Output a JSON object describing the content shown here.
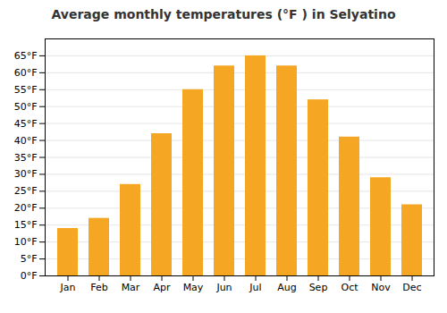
{
  "chart_data": {
    "type": "bar",
    "title": "Average monthly temperatures (°F ) in Selyatino",
    "categories": [
      "Jan",
      "Feb",
      "Mar",
      "Apr",
      "May",
      "Jun",
      "Jul",
      "Aug",
      "Sep",
      "Oct",
      "Nov",
      "Dec"
    ],
    "values": [
      14,
      17,
      27,
      42,
      55,
      62,
      65,
      62,
      52,
      41,
      29,
      21
    ],
    "color": "#F5A623",
    "ylim": [
      0,
      70
    ],
    "yticks": [
      {
        "value": 0,
        "label": "0°F"
      },
      {
        "value": 5,
        "label": "5°F"
      },
      {
        "value": 10,
        "label": "10°F"
      },
      {
        "value": 15,
        "label": "15°F"
      },
      {
        "value": 20,
        "label": "20°F"
      },
      {
        "value": 25,
        "label": "25°F"
      },
      {
        "value": 30,
        "label": "30°F"
      },
      {
        "value": 35,
        "label": "35°F"
      },
      {
        "value": 40,
        "label": "40°F"
      },
      {
        "value": 45,
        "label": "45°F"
      },
      {
        "value": 50,
        "label": "50°F"
      },
      {
        "value": 55,
        "label": "55°F"
      },
      {
        "value": 60,
        "label": "60°F"
      },
      {
        "value": 65,
        "label": "65°F"
      }
    ],
    "grid": true
  }
}
